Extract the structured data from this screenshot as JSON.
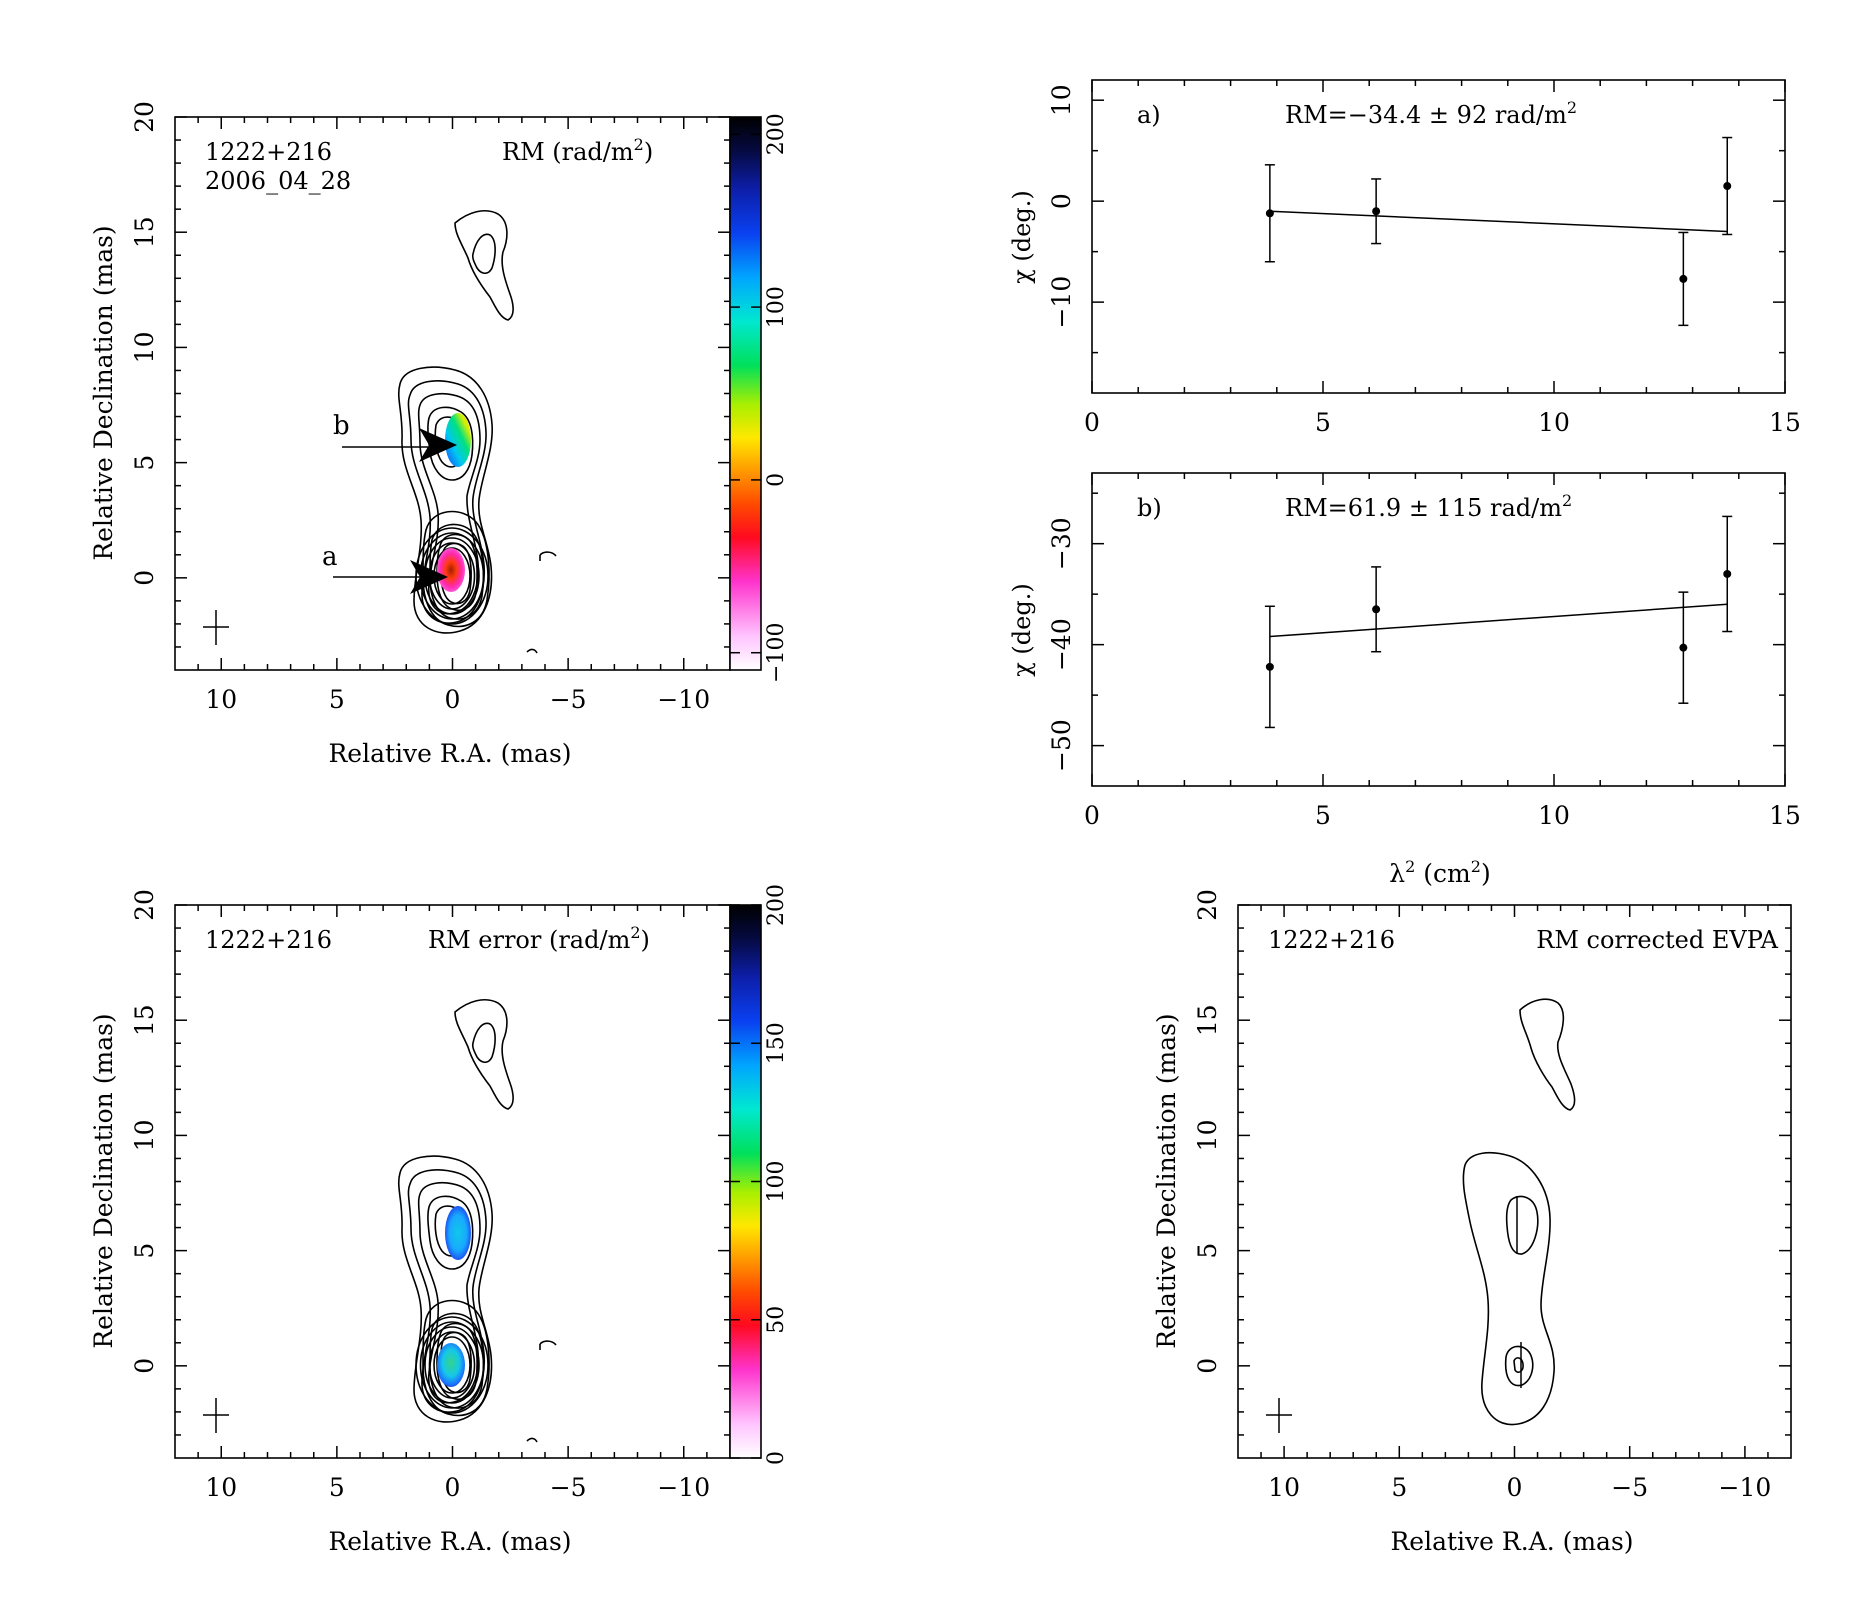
{
  "panels": {
    "rm_map": {
      "source": "1222+216",
      "date": "2006_04_28",
      "title": "RM (rad/m",
      "title_sup": "2",
      "title_tail": ")",
      "xlabel": "Relative R.A. (mas)",
      "ylabel": "Relative Declination (mas)",
      "marker_a": "a",
      "marker_b": "b"
    },
    "rm_err_map": {
      "source": "1222+216",
      "title": "RM error (rad/m",
      "title_sup": "2",
      "title_tail": ")",
      "xlabel": "Relative R.A. (mas)",
      "ylabel": "Relative Declination (mas)"
    },
    "evpa_map": {
      "source": "1222+216",
      "title": "RM corrected EVPA",
      "xlabel": "Relative R.A. (mas)",
      "ylabel": "Relative Declination (mas)"
    },
    "fit_a": {
      "tag": "a)",
      "rm_text": "RM=−34.4 ± 92 rad/m",
      "rm_sup": "2",
      "ylabel": "χ (deg.)"
    },
    "fit_b": {
      "tag": "b)",
      "rm_text": "RM=61.9 ± 115 rad/m",
      "rm_sup": "2",
      "ylabel": "χ (deg.)",
      "xlabel": "λ",
      "xlabel_sup": "2",
      "xlabel_tail": " (cm",
      "xlabel_sup2": "2",
      "xlabel_tail2": ")"
    }
  },
  "chart_data": [
    {
      "type": "heatmap",
      "title": "RM (rad/m2)",
      "xlabel": "Relative R.A. (mas)",
      "ylabel": "Relative Declination (mas)",
      "xlim": [
        12,
        -12
      ],
      "ylim": [
        -4,
        20
      ],
      "xticks": [
        "10",
        "5",
        "0",
        "−5",
        "−10"
      ],
      "yticks": [
        "0",
        "5",
        "10",
        "15",
        "20"
      ],
      "colorbar": {
        "range": [
          -110,
          210
        ],
        "ticks": [
          "−100",
          "0",
          "100",
          "200"
        ]
      }
    },
    {
      "type": "heatmap",
      "title": "RM error (rad/m2)",
      "xlabel": "Relative R.A. (mas)",
      "ylabel": "Relative Declination (mas)",
      "xlim": [
        12,
        -12
      ],
      "ylim": [
        -4,
        20
      ],
      "xticks": [
        "10",
        "5",
        "0",
        "−5",
        "−10"
      ],
      "yticks": [
        "0",
        "5",
        "10",
        "15",
        "20"
      ],
      "colorbar": {
        "range": [
          0,
          200
        ],
        "ticks": [
          "0",
          "50",
          "100",
          "150",
          "200"
        ]
      }
    },
    {
      "type": "heatmap",
      "title": "RM corrected EVPA",
      "xlabel": "Relative R.A. (mas)",
      "ylabel": "Relative Declination (mas)",
      "xlim": [
        12,
        -12
      ],
      "ylim": [
        -4,
        20
      ],
      "xticks": [
        "10",
        "5",
        "0",
        "−5",
        "−10"
      ],
      "yticks": [
        "0",
        "5",
        "10",
        "15",
        "20"
      ]
    },
    {
      "type": "scatter",
      "title": "a)",
      "annotation": "RM=−34.4 ± 92 rad/m2",
      "ylabel": "χ (deg.)",
      "xlim": [
        0,
        15
      ],
      "ylim": [
        -19,
        12
      ],
      "xticks": [
        "0",
        "5",
        "10",
        "15"
      ],
      "yticks": [
        "−10",
        "0",
        "10"
      ],
      "points": [
        {
          "x": 3.85,
          "y": -1.2,
          "err": 4.8
        },
        {
          "x": 6.15,
          "y": -1.0,
          "err": 3.2
        },
        {
          "x": 12.8,
          "y": -7.7,
          "err": 4.6
        },
        {
          "x": 13.75,
          "y": 1.5,
          "err": 4.8
        }
      ],
      "fit": {
        "x": [
          3.85,
          13.75
        ],
        "y": [
          -1.0,
          -3.0
        ]
      }
    },
    {
      "type": "scatter",
      "title": "b)",
      "annotation": "RM=61.9 ± 115 rad/m2",
      "ylabel": "χ (deg.)",
      "xlabel": "λ2 (cm2)",
      "xlim": [
        0,
        15
      ],
      "ylim": [
        -54,
        -23
      ],
      "xticks": [
        "0",
        "5",
        "10",
        "15"
      ],
      "yticks": [
        "−50",
        "−40",
        "−30"
      ],
      "points": [
        {
          "x": 3.85,
          "y": -42.2,
          "err": 6.0
        },
        {
          "x": 6.15,
          "y": -36.5,
          "err": 4.2
        },
        {
          "x": 12.8,
          "y": -40.3,
          "err": 5.5
        },
        {
          "x": 13.75,
          "y": -33.0,
          "err": 5.7
        }
      ],
      "fit": {
        "x": [
          3.85,
          13.75
        ],
        "y": [
          -39.2,
          -36.0
        ]
      }
    }
  ]
}
